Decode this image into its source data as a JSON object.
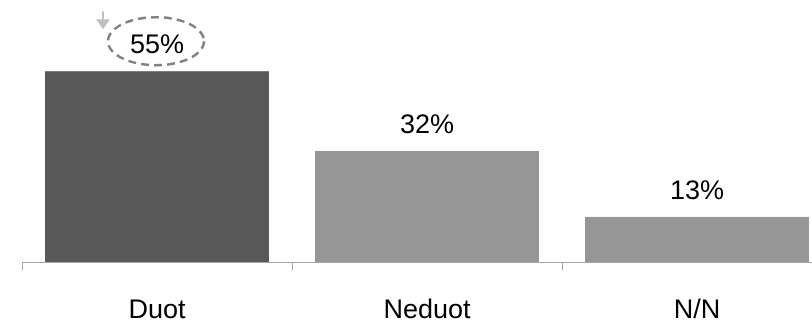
{
  "chart_data": {
    "type": "bar",
    "categories": [
      "Duot",
      "Neduot",
      "N/N"
    ],
    "values": [
      55,
      32,
      13
    ],
    "data_labels": [
      "55%",
      "32%",
      "13%"
    ],
    "title": "",
    "xlabel": "",
    "ylabel": "",
    "ylim": [
      0,
      64
    ],
    "grid": false,
    "legend": "none",
    "colors": {
      "bars": [
        "#595959",
        "#969696",
        "#969696"
      ],
      "axis": "#a6a6a6",
      "highlight_ellipse": "#808080",
      "highlight_arrow": "#c0c0c0"
    },
    "annotations": [
      {
        "type": "dashed-ellipse",
        "target_category": "Duot"
      }
    ]
  }
}
